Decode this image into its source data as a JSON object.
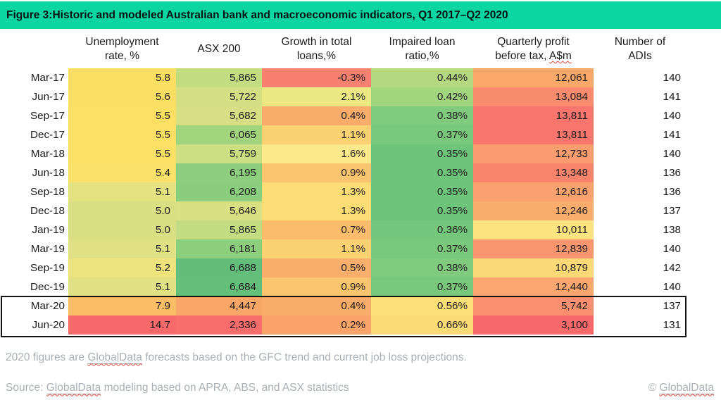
{
  "title_bar": {
    "text": "Figure 3:Historic and modeled Australian bank and macroeconomic indicators, Q1 2017–Q2 2020",
    "bg_color": "#0BD5A1"
  },
  "table": {
    "headers": [
      {
        "lines": [
          ""
        ]
      },
      {
        "lines": [
          "Unemployment",
          "rate, %"
        ]
      },
      {
        "lines": [
          "ASX 200"
        ]
      },
      {
        "lines": [
          "Growth in total",
          "loans,%"
        ]
      },
      {
        "lines": [
          "Impaired loan",
          "ratio,%"
        ]
      },
      {
        "lines": [
          "Quarterly profit",
          "before tax, A$m"
        ],
        "squiggle_word": "A$m"
      },
      {
        "lines": [
          "Number of",
          "ADIs"
        ]
      }
    ],
    "rows": [
      {
        "label": "Mar-17",
        "cells": [
          {
            "text": "5.8",
            "bg": "#FBDE62"
          },
          {
            "text": "5,865",
            "bg": "#C3DC81"
          },
          {
            "text": "-0.3%",
            "bg": "#F88070"
          },
          {
            "text": "0.44%",
            "bg": "#B4D87F"
          },
          {
            "text": "12,061",
            "bg": "#FAA869"
          },
          {
            "text": "140",
            "bg": "#FFFFFF"
          }
        ]
      },
      {
        "label": "Jun-17",
        "cells": [
          {
            "text": "5.6",
            "bg": "#FBDF64"
          },
          {
            "text": "5,722",
            "bg": "#D3DF82"
          },
          {
            "text": "2.1%",
            "bg": "#EBE883"
          },
          {
            "text": "0.42%",
            "bg": "#A3D47E"
          },
          {
            "text": "13,084",
            "bg": "#F98B6F"
          },
          {
            "text": "141",
            "bg": "#FFFFFF"
          }
        ]
      },
      {
        "label": "Sep-17",
        "cells": [
          {
            "text": "5.5",
            "bg": "#FBE065"
          },
          {
            "text": "5,682",
            "bg": "#D6DF83"
          },
          {
            "text": "0.4%",
            "bg": "#FAAD6B"
          },
          {
            "text": "0.38%",
            "bg": "#7FCA7C"
          },
          {
            "text": "13,811",
            "bg": "#F8766D"
          },
          {
            "text": "140",
            "bg": "#FFFFFF"
          }
        ]
      },
      {
        "label": "Dec-17",
        "cells": [
          {
            "text": "5.5",
            "bg": "#FBE065"
          },
          {
            "text": "6,065",
            "bg": "#A2D47E"
          },
          {
            "text": "1.1%",
            "bg": "#FBD172"
          },
          {
            "text": "0.37%",
            "bg": "#79C87C"
          },
          {
            "text": "13,811",
            "bg": "#F8766D"
          },
          {
            "text": "141",
            "bg": "#FFFFFF"
          }
        ]
      },
      {
        "label": "Mar-18",
        "cells": [
          {
            "text": "5.5",
            "bg": "#FBE065"
          },
          {
            "text": "5,759",
            "bg": "#CCDE82"
          },
          {
            "text": "1.6%",
            "bg": "#FCE98B"
          },
          {
            "text": "0.35%",
            "bg": "#6EC47B"
          },
          {
            "text": "12,733",
            "bg": "#F99C70"
          },
          {
            "text": "140",
            "bg": "#FFFFFF"
          }
        ]
      },
      {
        "label": "Jun-18",
        "cells": [
          {
            "text": "5.4",
            "bg": "#FAE169"
          },
          {
            "text": "6,195",
            "bg": "#8CCE7D"
          },
          {
            "text": "0.9%",
            "bg": "#FBC46E"
          },
          {
            "text": "0.35%",
            "bg": "#6EC47B"
          },
          {
            "text": "13,348",
            "bg": "#F8846E"
          },
          {
            "text": "136",
            "bg": "#FFFFFF"
          }
        ]
      },
      {
        "label": "Sep-18",
        "cells": [
          {
            "text": "5.1",
            "bg": "#E4E180"
          },
          {
            "text": "6,208",
            "bg": "#8ACD7D"
          },
          {
            "text": "1.3%",
            "bg": "#FBDC75"
          },
          {
            "text": "0.35%",
            "bg": "#6EC47B"
          },
          {
            "text": "12,616",
            "bg": "#F9A16F"
          },
          {
            "text": "136",
            "bg": "#FFFFFF"
          }
        ]
      },
      {
        "label": "Dec-18",
        "cells": [
          {
            "text": "5.0",
            "bg": "#D8DF83"
          },
          {
            "text": "5,646",
            "bg": "#D9E083"
          },
          {
            "text": "1.3%",
            "bg": "#FBDC75"
          },
          {
            "text": "0.35%",
            "bg": "#6EC47B"
          },
          {
            "text": "12,246",
            "bg": "#FAAC6C"
          },
          {
            "text": "137",
            "bg": "#FFFFFF"
          }
        ]
      },
      {
        "label": "Jan-19",
        "cells": [
          {
            "text": "5.0",
            "bg": "#D8DF83"
          },
          {
            "text": "5,865",
            "bg": "#C3DC81"
          },
          {
            "text": "0.7%",
            "bg": "#FBBC6C"
          },
          {
            "text": "0.36%",
            "bg": "#74C67C"
          },
          {
            "text": "10,011",
            "bg": "#FBE380"
          },
          {
            "text": "138",
            "bg": "#FFFFFF"
          }
        ]
      },
      {
        "label": "Mar-19",
        "cells": [
          {
            "text": "5.1",
            "bg": "#E0E184"
          },
          {
            "text": "6,181",
            "bg": "#8DCE7D"
          },
          {
            "text": "1.1%",
            "bg": "#FBD172"
          },
          {
            "text": "0.37%",
            "bg": "#79C87C"
          },
          {
            "text": "12,839",
            "bg": "#F9956F"
          },
          {
            "text": "140",
            "bg": "#FFFFFF"
          }
        ]
      },
      {
        "label": "Sep-19",
        "cells": [
          {
            "text": "5.2",
            "bg": "#EDE27C"
          },
          {
            "text": "6,688",
            "bg": "#63BE7B"
          },
          {
            "text": "0.5%",
            "bg": "#FAAE6B"
          },
          {
            "text": "0.38%",
            "bg": "#7FCA7C"
          },
          {
            "text": "10,879",
            "bg": "#FBD977"
          },
          {
            "text": "142",
            "bg": "#FFFFFF"
          }
        ]
      },
      {
        "label": "Dec-19",
        "cells": [
          {
            "text": "5.1",
            "bg": "#E0E184"
          },
          {
            "text": "6,684",
            "bg": "#64BF7B"
          },
          {
            "text": "0.9%",
            "bg": "#FBC46E"
          },
          {
            "text": "0.37%",
            "bg": "#79C87C"
          },
          {
            "text": "12,440",
            "bg": "#F9A76F"
          },
          {
            "text": "140",
            "bg": "#FFFFFF"
          }
        ]
      },
      {
        "label": "Mar-20",
        "cells": [
          {
            "text": "7.9",
            "bg": "#FBBD66"
          },
          {
            "text": "4,447",
            "bg": "#F9A669"
          },
          {
            "text": "0.4%",
            "bg": "#FAAD6B"
          },
          {
            "text": "0.56%",
            "bg": "#FCE077"
          },
          {
            "text": "5,742",
            "bg": "#F98F70"
          },
          {
            "text": "137",
            "bg": "#FFFFFF"
          }
        ]
      },
      {
        "label": "Jun-20",
        "cells": [
          {
            "text": "14.7",
            "bg": "#F8696B"
          },
          {
            "text": "2,336",
            "bg": "#F86C6C"
          },
          {
            "text": "0.2%",
            "bg": "#FAA469"
          },
          {
            "text": "0.66%",
            "bg": "#FBDB76"
          },
          {
            "text": "3,100",
            "bg": "#F8696B"
          },
          {
            "text": "131",
            "bg": "#FFFFFF"
          }
        ]
      }
    ],
    "highlight": {
      "rows": [
        "Mar-20",
        "Jun-20"
      ],
      "border_color": "#141414"
    }
  },
  "chart_data": {
    "type": "table",
    "title": "Figure 3:Historic and modeled Australian bank and macroeconomic indicators, Q1 2017–Q2 2020",
    "row_labels": [
      "Mar-17",
      "Jun-17",
      "Sep-17",
      "Dec-17",
      "Mar-18",
      "Jun-18",
      "Sep-18",
      "Dec-18",
      "Jan-19",
      "Mar-19",
      "Sep-19",
      "Dec-19",
      "Mar-20",
      "Jun-20"
    ],
    "columns": [
      "Unemployment rate, %",
      "ASX 200",
      "Growth in total loans,%",
      "Impaired loan ratio,%",
      "Quarterly profit before tax, A$m",
      "Number of ADIs"
    ],
    "series": [
      {
        "name": "Unemployment rate, %",
        "values": [
          5.8,
          5.6,
          5.5,
          5.5,
          5.5,
          5.4,
          5.1,
          5.0,
          5.0,
          5.1,
          5.2,
          5.1,
          7.9,
          14.7
        ]
      },
      {
        "name": "ASX 200",
        "values": [
          5865,
          5722,
          5682,
          6065,
          5759,
          6195,
          6208,
          5646,
          5865,
          6181,
          6688,
          6684,
          4447,
          2336
        ]
      },
      {
        "name": "Growth in total loans,%",
        "values": [
          -0.3,
          2.1,
          0.4,
          1.1,
          1.6,
          0.9,
          1.3,
          1.3,
          0.7,
          1.1,
          0.5,
          0.9,
          0.4,
          0.2
        ]
      },
      {
        "name": "Impaired loan ratio,%",
        "values": [
          0.44,
          0.42,
          0.38,
          0.37,
          0.35,
          0.35,
          0.35,
          0.35,
          0.36,
          0.37,
          0.38,
          0.37,
          0.56,
          0.66
        ]
      },
      {
        "name": "Quarterly profit before tax, A$m",
        "values": [
          12061,
          13084,
          13811,
          13811,
          12733,
          13348,
          12616,
          12246,
          10011,
          12839,
          10879,
          12440,
          5742,
          3100
        ]
      },
      {
        "name": "Number of ADIs",
        "values": [
          140,
          141,
          140,
          141,
          140,
          136,
          136,
          137,
          138,
          140,
          142,
          140,
          137,
          131
        ]
      }
    ],
    "highlighted_rows": [
      "Mar-20",
      "Jun-20"
    ],
    "legend_position": "none",
    "notes": "red-yellow-green conditional-format heatmap applied per column; Number of ADIs column unshaded"
  },
  "footnote": {
    "parts": [
      {
        "t": "2020 figures are "
      },
      {
        "t": "GlobalData",
        "mark": true
      },
      {
        "t": " forecasts based on the GFC trend and current job loss projections."
      }
    ]
  },
  "source": {
    "parts": [
      {
        "t": "Source: "
      },
      {
        "t": "GlobalData",
        "mark": true
      },
      {
        "t": " modeling based on APRA, ABS, and ASX statistics"
      }
    ]
  },
  "copyright": {
    "parts": [
      {
        "t": "© "
      },
      {
        "t": "GlobalData",
        "mark": true
      }
    ]
  },
  "colors": {
    "title_bar_bg": "#0BD5A1",
    "footer_text": "#A9AFB6",
    "squiggle_red": "#E4473B",
    "heat_red": "#F8696B",
    "heat_yellow": "#FBE065",
    "heat_green": "#63BE7B"
  }
}
